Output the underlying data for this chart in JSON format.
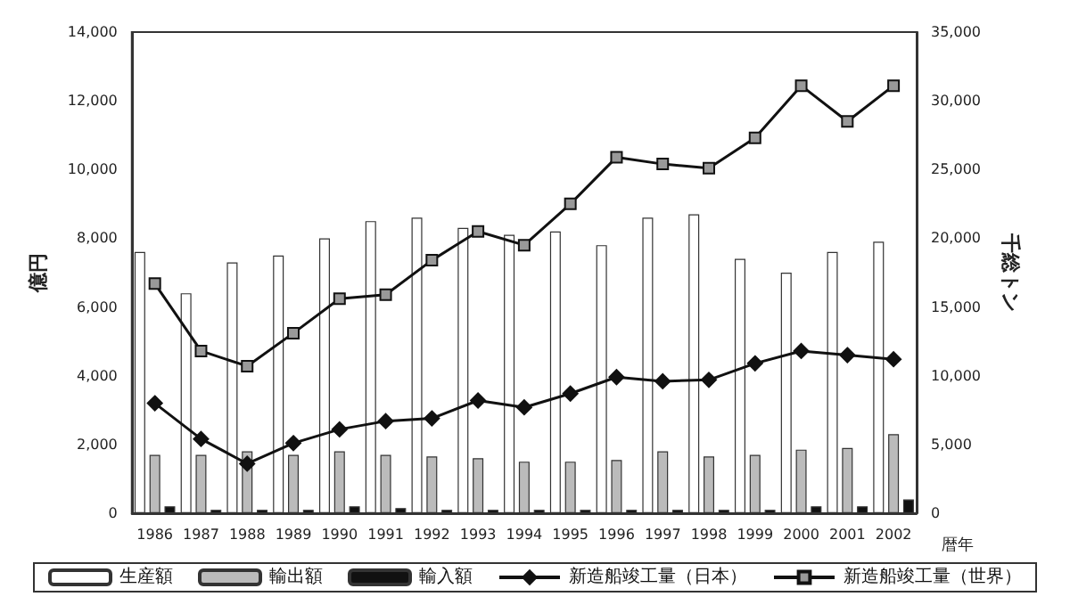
{
  "chart_data": {
    "type": "bar",
    "xlabel": "暦年",
    "ylabel": "億円",
    "y2label": "千総トン",
    "categories": [
      "1986",
      "1987",
      "1988",
      "1989",
      "1990",
      "1991",
      "1992",
      "1993",
      "1994",
      "1995",
      "1996",
      "1997",
      "1998",
      "1999",
      "2000",
      "2001",
      "2002"
    ],
    "series": [
      {
        "name": "生産額",
        "color": "#ffffff",
        "values": [
          7600,
          6400,
          7300,
          7500,
          8000,
          8500,
          8600,
          8300,
          8100,
          8200,
          7800,
          8600,
          8700,
          7400,
          7000,
          7600,
          7900
        ]
      },
      {
        "name": "輸出額",
        "color": "#bbbbbb",
        "values": [
          1700,
          1700,
          1800,
          1700,
          1800,
          1700,
          1650,
          1600,
          1500,
          1500,
          1550,
          1800,
          1650,
          1700,
          1850,
          1900,
          2300
        ]
      },
      {
        "name": "輸入額",
        "color": "#111111",
        "values": [
          200,
          100,
          100,
          100,
          200,
          150,
          100,
          100,
          100,
          100,
          100,
          100,
          100,
          100,
          200,
          200,
          400
        ]
      },
      {
        "name": "新造船竣工量（日本）",
        "type": "line",
        "axis": "y2",
        "marker": "diamond",
        "color": "#111111",
        "values": [
          8000,
          5400,
          3600,
          5100,
          6100,
          6700,
          6900,
          8200,
          7700,
          8700,
          9900,
          9600,
          9700,
          10900,
          11800,
          11500,
          11200
        ]
      },
      {
        "name": "新造船竣工量（世界）",
        "type": "line",
        "axis": "y2",
        "marker": "square",
        "color": "#111111",
        "values": [
          16700,
          11800,
          10700,
          13100,
          15600,
          15900,
          18400,
          20500,
          19500,
          22500,
          25900,
          25400,
          25100,
          27300,
          31100,
          28500,
          31100
        ]
      }
    ],
    "ylim": [
      0,
      14000
    ],
    "yticks": [
      0,
      {
        "value": 2000,
        "label": "2,000"
      },
      {
        "value": 4000,
        "label": "4,000"
      },
      {
        "value": 6000,
        "label": "6,000"
      },
      {
        "value": 8000,
        "label": "8,000"
      },
      {
        "value": 10000,
        "label": "10,000"
      },
      {
        "value": 12000,
        "label": "12,000"
      },
      {
        "value": 14000,
        "label": "14,000"
      }
    ],
    "y2lim": [
      0,
      35000
    ],
    "y2ticks": [
      0,
      {
        "value": 5000,
        "label": "5,000"
      },
      {
        "value": 10000,
        "label": "10,000"
      },
      {
        "value": 15000,
        "label": "15,000"
      },
      {
        "value": 20000,
        "label": "20,000"
      },
      {
        "value": 25000,
        "label": "25,000"
      },
      {
        "value": 30000,
        "label": "30,000"
      },
      {
        "value": 35000,
        "label": "35,000"
      }
    ],
    "legend": "bottom",
    "grid": false
  }
}
